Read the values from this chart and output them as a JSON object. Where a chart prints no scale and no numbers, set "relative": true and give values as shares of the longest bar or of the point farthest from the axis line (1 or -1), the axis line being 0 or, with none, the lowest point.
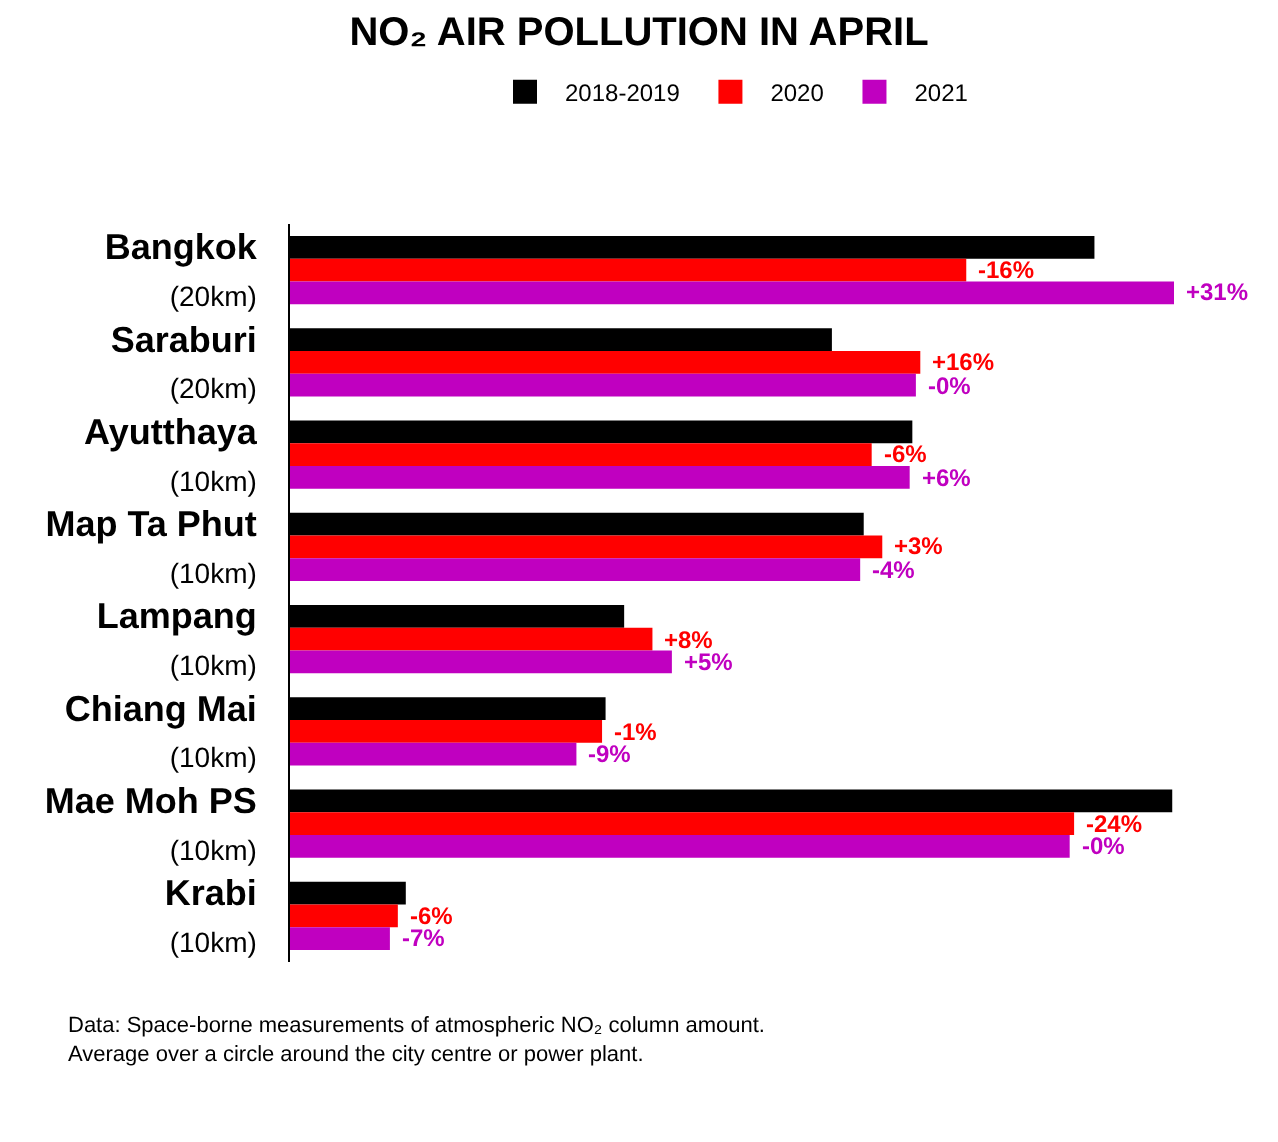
{
  "chart_data": {
    "type": "bar",
    "orientation": "horizontal",
    "relative": true,
    "title": "NO₂ AIR POLLUTION IN APRIL",
    "legend": "top",
    "categories": [
      "Bangkok\n(20km)",
      "Saraburi\n(20km)",
      "Ayutthaya\n(10km)",
      "Map Ta Phut\n(10km)",
      "Lampang\n(10km)",
      "Chiang Mai\n(10km)",
      "Mae Moh PS\n(10km)",
      "Krabi\n(10km)"
    ],
    "series": [
      {
        "name": "2018-2019",
        "color": "#000000",
        "values": [
          0.91,
          0.613,
          0.704,
          0.649,
          0.378,
          0.357,
          0.998,
          0.131
        ]
      },
      {
        "name": "2020",
        "color": "#ff0000",
        "values": [
          0.765,
          0.713,
          0.658,
          0.67,
          0.41,
          0.353,
          0.887,
          0.122
        ]
      },
      {
        "name": "2021",
        "color": "#c000c0",
        "values": [
          1.0,
          0.708,
          0.701,
          0.645,
          0.432,
          0.324,
          0.882,
          0.113
        ]
      }
    ],
    "annotations": [
      "-16%",
      "+16%",
      "-6%",
      "+3%",
      "+8%",
      "-1%",
      "-24%",
      "-6%",
      "+31%",
      "-0%",
      "+6%",
      "-4%",
      "+5%",
      "-9%",
      "-0%",
      "-7%",
      "Data: Space-borne measurements of atmospheric NO₂ column amount.\nAverage over a circle around the city centre or power plant."
    ]
  }
}
